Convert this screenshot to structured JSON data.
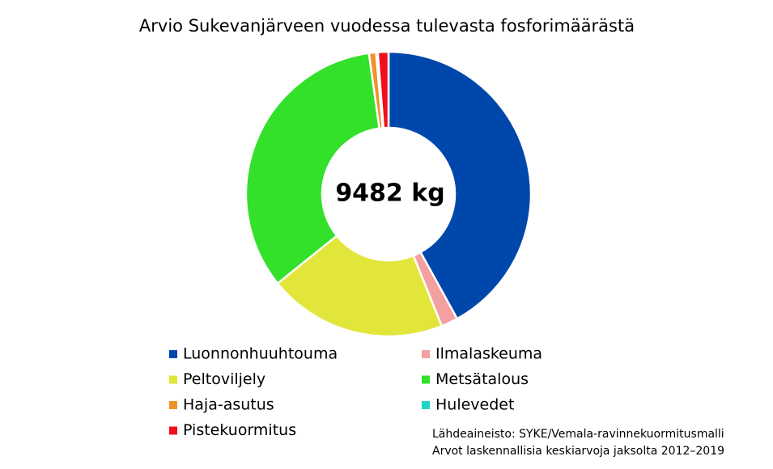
{
  "chart_data": {
    "type": "donut",
    "title": "Arvio Sukevanjärveen vuodessa tulevasta fosforimäärästä",
    "center_label": "9482 kg",
    "categories": [
      "Luonnonhuuhtouma",
      "Ilmalaskeuma",
      "Peltoviljely",
      "Metsätalous",
      "Haja-asutus",
      "Hulevedet",
      "Pistekuormitus"
    ],
    "values": [
      42.0,
      1.9,
      20.3,
      33.6,
      0.8,
      0.2,
      1.2
    ],
    "colors": [
      "#0047ab",
      "#f4a0a0",
      "#e3e63a",
      "#33e02a",
      "#f0912a",
      "#1ed6c8",
      "#f0101a"
    ],
    "notes": [
      "Lähdeaineisto: SYKE/Vemala-ravinnekuormitusmalli",
      "Arvot laskennallisia keskiarvoja jaksolta 2012–2019"
    ]
  }
}
